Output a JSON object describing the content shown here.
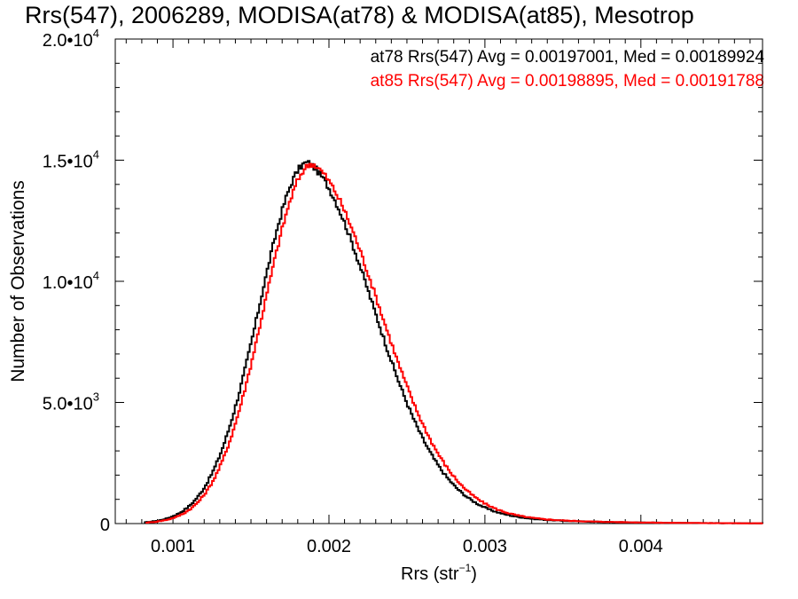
{
  "chart_data": {
    "type": "line",
    "title": "Rrs(547), 2006289, MODISA(at78) & MODISA(at85), Mesotrop",
    "xlabel_base": "Rrs (str",
    "xlabel_sup": "−1",
    "xlabel_close": ")",
    "ylabel": "Number of Observations",
    "xlim": [
      0.00063,
      0.00478
    ],
    "ylim": [
      0,
      20000
    ],
    "x_ticks": [
      {
        "value": 0.001,
        "label": "0.001"
      },
      {
        "value": 0.002,
        "label": "0.002"
      },
      {
        "value": 0.003,
        "label": "0.003"
      },
      {
        "value": 0.004,
        "label": "0.004"
      }
    ],
    "y_ticks": [
      {
        "value": 0,
        "base": "0",
        "exp": ""
      },
      {
        "value": 5000,
        "base": "5.0•10",
        "exp": "3"
      },
      {
        "value": 10000,
        "base": "1.0•10",
        "exp": "4"
      },
      {
        "value": 15000,
        "base": "1.5•10",
        "exp": "4"
      },
      {
        "value": 20000,
        "base": "2.0•10",
        "exp": "4"
      }
    ],
    "stats": [
      {
        "text": "at78 Rrs(547) Avg = 0.00197001, Med = 0.00189924",
        "color": "#000000"
      },
      {
        "text": "at85 Rrs(547) Avg = 0.00198895, Med = 0.00191788",
        "color": "#ff0000"
      }
    ],
    "series": [
      {
        "name": "at78",
        "color": "#000000",
        "mode": 0.00186,
        "peak": 14900,
        "sigma_left": 0.00031,
        "sigma_right": 0.00043,
        "onset": 0.00082,
        "xmax": 0.00478
      },
      {
        "name": "at85",
        "color": "#ff0000",
        "mode": 0.00189,
        "peak": 14850,
        "sigma_left": 0.00031,
        "sigma_right": 0.00044,
        "onset": 0.00083,
        "xmax": 0.00478
      }
    ]
  }
}
